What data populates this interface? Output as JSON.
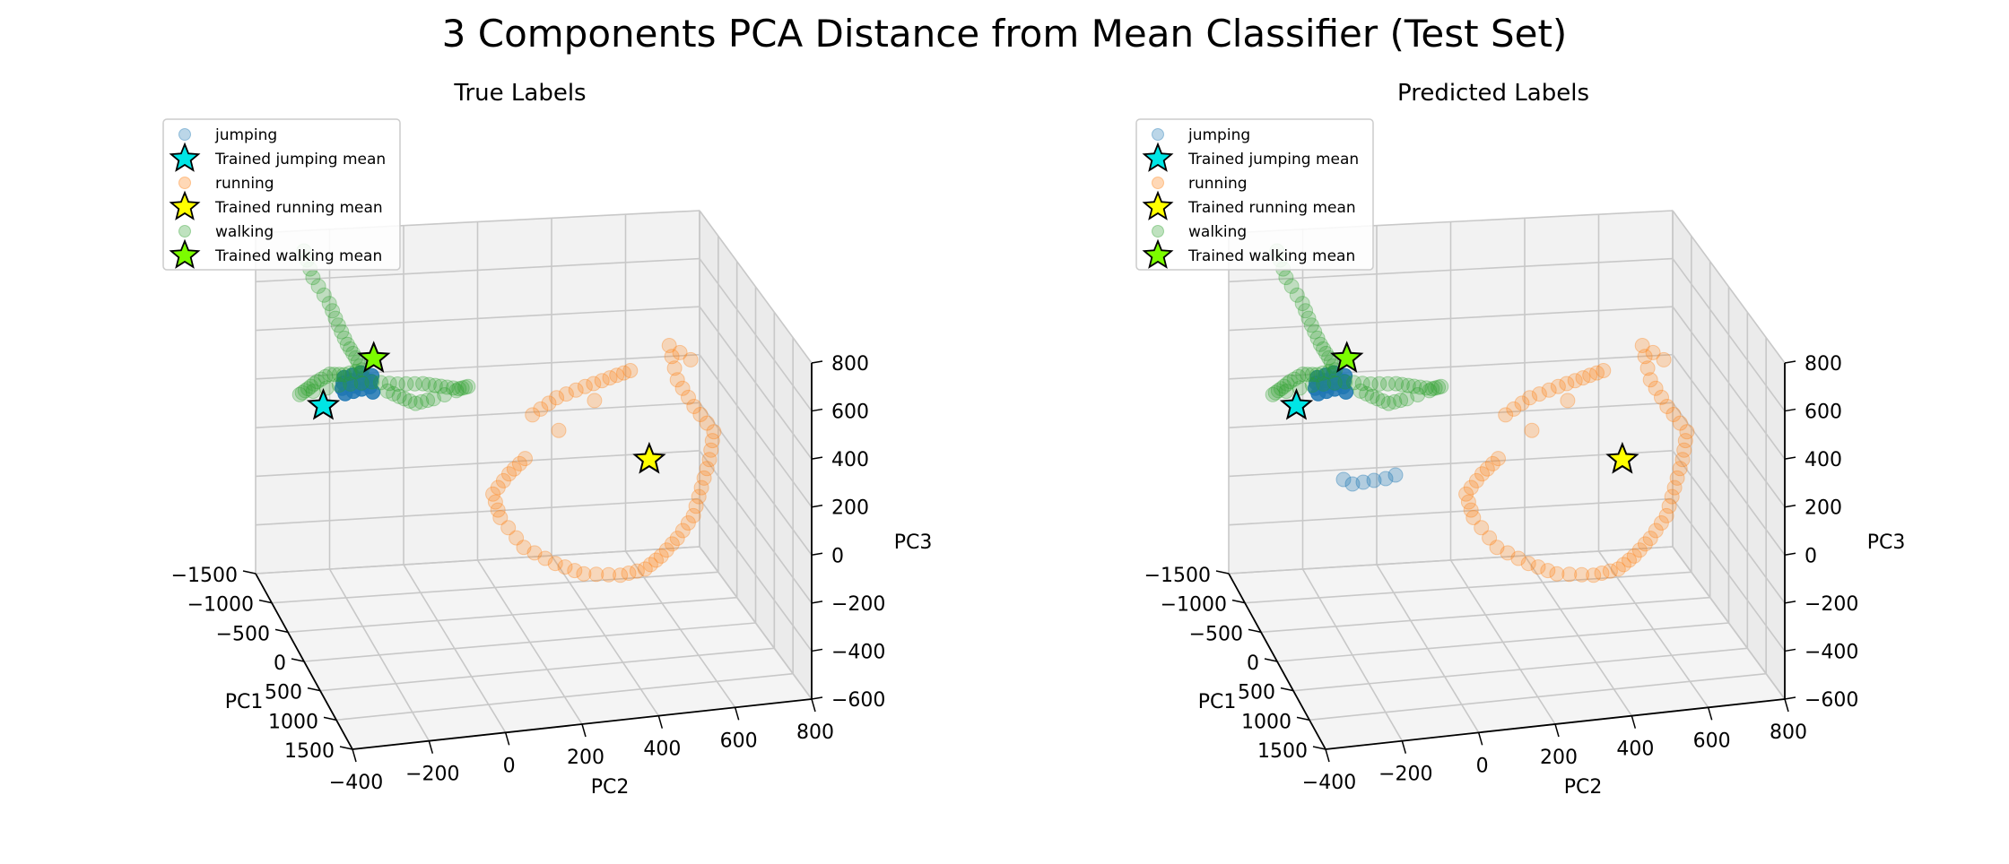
{
  "figure": {
    "title": "3 Components PCA Distance from Mean Classifier (Test Set)"
  },
  "colors": {
    "jumping": "#1f77b4",
    "running": "#ff7f0e",
    "walking": "#2ca02c",
    "jumping_mean": "#00e5e5",
    "running_mean": "#ffff00",
    "walking_mean": "#7cfc00",
    "pane": "#f2f2f2",
    "grid": "#c8c8c8"
  },
  "chart_data": [
    {
      "type": "scatter",
      "projection": "3d",
      "title": "True Labels",
      "xlabel": "PC1",
      "ylabel": "PC2",
      "zlabel": "PC3",
      "xlim": [
        -1500,
        1500
      ],
      "ylim": [
        -400,
        800
      ],
      "zlim": [
        -600,
        800
      ],
      "xticks": [
        "−1500",
        "−1000",
        "−500",
        "0",
        "500",
        "1000",
        "1500"
      ],
      "yticks": [
        "−400",
        "−200",
        "0",
        "200",
        "400",
        "600",
        "800"
      ],
      "zticks": [
        "−600",
        "−400",
        "−200",
        "0",
        "200",
        "400",
        "600",
        "800"
      ],
      "grid": true,
      "legend_position": "upper-left",
      "legend": [
        "jumping",
        "Trained jumping mean",
        "running",
        "Trained running mean",
        "walking",
        "Trained walking mean"
      ],
      "series": [
        {
          "name": "jumping",
          "marker": "circle",
          "cluster": "jumping",
          "points": [
            [
              -1300,
              -150,
              150
            ]
          ]
        },
        {
          "name": "running",
          "marker": "circle",
          "cluster": "running",
          "points": [
            [
              300,
              450,
              200
            ]
          ]
        },
        {
          "name": "walking",
          "marker": "circle",
          "cluster": "walking",
          "points": [
            [
              -900,
              -50,
              300
            ]
          ]
        },
        {
          "name": "Trained jumping mean",
          "marker": "star",
          "points": [
            [
              -1350,
              -230,
              120
            ]
          ]
        },
        {
          "name": "Trained running mean",
          "marker": "star",
          "points": [
            [
              380,
              500,
              250
            ]
          ]
        },
        {
          "name": "Trained walking mean",
          "marker": "star",
          "points": [
            [
              -1050,
              -120,
              380
            ]
          ]
        }
      ]
    },
    {
      "type": "scatter",
      "projection": "3d",
      "title": "Predicted Labels",
      "xlabel": "PC1",
      "ylabel": "PC2",
      "zlabel": "PC3",
      "xlim": [
        -1500,
        1500
      ],
      "ylim": [
        -400,
        800
      ],
      "zlim": [
        -600,
        800
      ],
      "xticks": [
        "−1500",
        "−1000",
        "−500",
        "0",
        "500",
        "1000",
        "1500"
      ],
      "yticks": [
        "−400",
        "−200",
        "0",
        "200",
        "400",
        "600",
        "800"
      ],
      "zticks": [
        "−600",
        "−400",
        "−200",
        "0",
        "200",
        "400",
        "600",
        "800"
      ],
      "grid": true,
      "legend_position": "upper-left",
      "legend": [
        "jumping",
        "Trained jumping mean",
        "running",
        "Trained running mean",
        "walking",
        "Trained walking mean"
      ],
      "series": [
        {
          "name": "jumping",
          "marker": "circle",
          "cluster": "jumping",
          "points": [
            [
              -1300,
              -150,
              150
            ]
          ]
        },
        {
          "name": "running",
          "marker": "circle",
          "cluster": "running",
          "points": [
            [
              300,
              450,
              200
            ]
          ]
        },
        {
          "name": "walking",
          "marker": "circle",
          "cluster": "walking",
          "points": [
            [
              -900,
              -50,
              300
            ]
          ]
        },
        {
          "name": "Trained jumping mean",
          "marker": "star",
          "points": [
            [
              -1350,
              -230,
              120
            ]
          ]
        },
        {
          "name": "Trained running mean",
          "marker": "star",
          "points": [
            [
              380,
              500,
              250
            ]
          ]
        },
        {
          "name": "Trained walking mean",
          "marker": "star",
          "points": [
            [
              -1050,
              -120,
              380
            ]
          ]
        }
      ]
    }
  ]
}
